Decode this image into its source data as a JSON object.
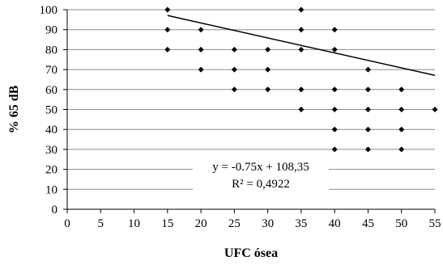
{
  "chart_data": {
    "type": "scatter",
    "title": "",
    "xlabel": "UFC ósea",
    "ylabel": "% 65 dB",
    "xlim": [
      0,
      55
    ],
    "ylim": [
      0,
      100
    ],
    "x_ticks": [
      "0",
      "5",
      "10",
      "15",
      "20",
      "25",
      "30",
      "35",
      "40",
      "45",
      "50",
      "55"
    ],
    "y_ticks": [
      "0",
      "10",
      "20",
      "30",
      "40",
      "50",
      "60",
      "70",
      "80",
      "90",
      "100"
    ],
    "grid": "horizontal",
    "series": [
      {
        "points": [
          [
            15,
            100
          ],
          [
            15,
            90
          ],
          [
            15,
            80
          ],
          [
            20,
            90
          ],
          [
            20,
            80
          ],
          [
            20,
            70
          ],
          [
            25,
            80
          ],
          [
            25,
            70
          ],
          [
            25,
            60
          ],
          [
            30,
            80
          ],
          [
            30,
            70
          ],
          [
            30,
            60
          ],
          [
            35,
            100
          ],
          [
            35,
            90
          ],
          [
            35,
            80
          ],
          [
            35,
            60
          ],
          [
            35,
            50
          ],
          [
            40,
            90
          ],
          [
            40,
            80
          ],
          [
            40,
            60
          ],
          [
            40,
            50
          ],
          [
            40,
            40
          ],
          [
            40,
            30
          ],
          [
            45,
            70
          ],
          [
            45,
            60
          ],
          [
            45,
            50
          ],
          [
            45,
            40
          ],
          [
            45,
            30
          ],
          [
            50,
            60
          ],
          [
            50,
            50
          ],
          [
            50,
            40
          ],
          [
            50,
            30
          ],
          [
            55,
            50
          ]
        ],
        "marker": "diamond",
        "color": "#000000"
      }
    ],
    "trendline": {
      "slope": -0.75,
      "intercept": 108.35,
      "x_range": [
        15,
        55
      ],
      "color": "#000000"
    },
    "annotations": {
      "equation": "y = -0.75x + 108,35",
      "r_squared": "R² = 0,4922"
    }
  }
}
